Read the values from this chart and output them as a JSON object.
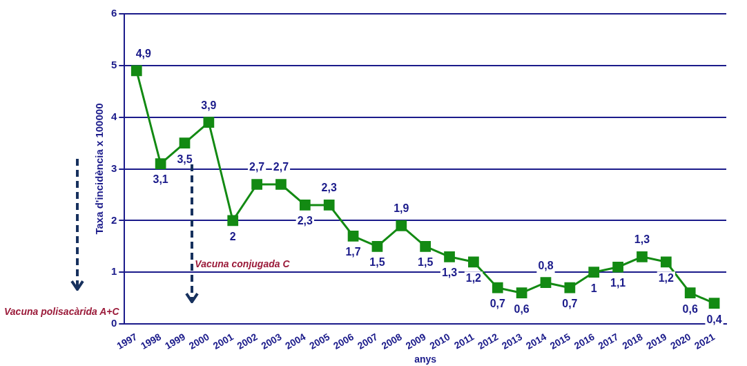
{
  "chart_data": {
    "type": "line",
    "xlabel": "anys",
    "ylabel": "Taxa d'incidència x 100000",
    "categories": [
      "1997",
      "1998",
      "1999",
      "2000",
      "2001",
      "2002",
      "2003",
      "2004",
      "2005",
      "2006",
      "2007",
      "2008",
      "2009",
      "2010",
      "2011",
      "2012",
      "2013",
      "2014",
      "2015",
      "2016",
      "2017",
      "2018",
      "2019",
      "2020",
      "2021"
    ],
    "series": [
      {
        "color": "#138a13",
        "values": [
          4.9,
          3.1,
          3.5,
          3.9,
          2,
          2.7,
          2.7,
          2.3,
          2.3,
          1.7,
          1.5,
          1.9,
          1.5,
          1.3,
          1.2,
          0.7,
          0.6,
          0.8,
          0.7,
          1,
          1.1,
          1.3,
          1.2,
          0.6,
          0.4
        ],
        "value_labels": [
          "4,9",
          "3,1",
          "3,5",
          "3,9",
          "2",
          "2,7",
          "2,7",
          "2,3",
          "2,3",
          "1,7",
          "1,5",
          "1,9",
          "1,5",
          "1,3",
          "1,2",
          "0,7",
          "0,6",
          "0,8",
          "0,7",
          "1",
          "1,1",
          "1,3",
          "1,2",
          "0,6",
          "0,4"
        ]
      }
    ],
    "ylim": [
      0,
      6
    ],
    "yticks": [
      0,
      1,
      2,
      3,
      4,
      5,
      6
    ],
    "grid": "y",
    "marker": "square",
    "legend": false,
    "annotations": [
      "Vacuna polisacàrida A+C",
      "Vacuna conjugada C"
    ]
  }
}
